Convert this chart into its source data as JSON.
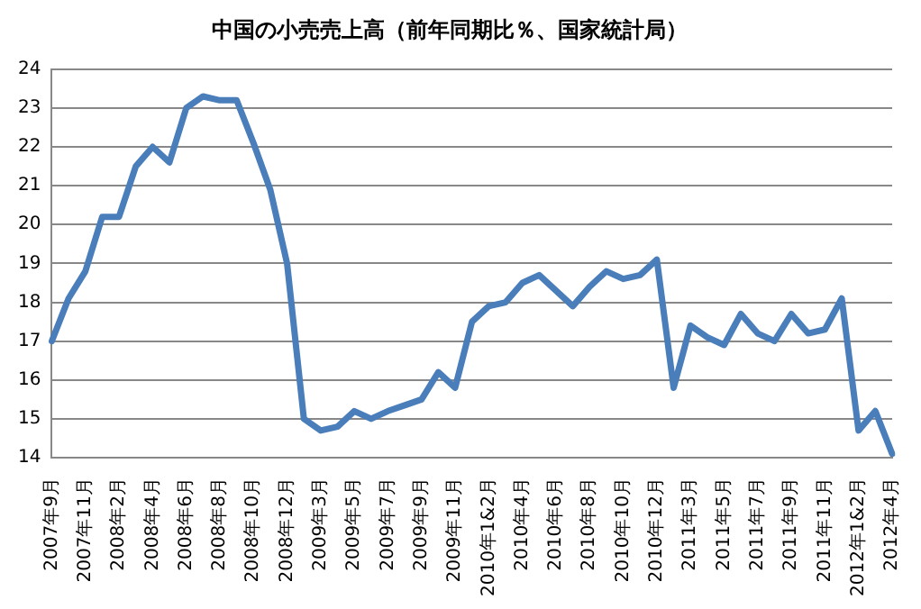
{
  "chart_data": {
    "type": "line",
    "title": "中国の小売売上高（前年同期比％、国家統計局）",
    "categories": [
      "2007年9月",
      null,
      "2007年11月",
      null,
      "2008年2月",
      null,
      "2008年4月",
      null,
      "2008年6月",
      null,
      "2008年8月",
      null,
      "2008年10月",
      null,
      "2008年12月",
      null,
      "2009年3月",
      null,
      "2009年5月",
      null,
      "2009年7月",
      null,
      "2009年9月",
      null,
      "2009年11月",
      null,
      "2010年1&2月",
      null,
      "2010年4月",
      null,
      "2010年6月",
      null,
      "2010年8月",
      null,
      "2010年10月",
      null,
      "2010年12月",
      null,
      "2011年3月",
      null,
      "2011年5月",
      null,
      "2011年7月",
      null,
      "2011年9月",
      null,
      "2011年11月",
      null,
      "2012年1&2月",
      null,
      "2012年4月"
    ],
    "series": [
      {
        "color": "#4a7ebb",
        "values": [
          17.0,
          18.1,
          18.8,
          20.2,
          20.2,
          21.5,
          22.0,
          21.6,
          23.0,
          23.3,
          23.2,
          23.2,
          22.1,
          20.9,
          19.0,
          15.0,
          14.7,
          14.8,
          15.2,
          15.0,
          15.2,
          15.35,
          15.5,
          16.2,
          15.8,
          17.5,
          17.9,
          18.0,
          18.5,
          18.7,
          18.3,
          17.9,
          18.4,
          18.8,
          18.6,
          18.7,
          19.1,
          15.8,
          17.4,
          17.1,
          16.9,
          17.7,
          17.2,
          17.0,
          17.7,
          17.2,
          17.3,
          18.1,
          14.7,
          15.2,
          14.1
        ]
      }
    ],
    "ylim": [
      14,
      24
    ],
    "yticks": [
      14,
      15,
      16,
      17,
      18,
      19,
      20,
      21,
      22,
      23,
      24
    ],
    "grid": "y",
    "legend": false,
    "marker": "none",
    "line_style": "solid"
  }
}
